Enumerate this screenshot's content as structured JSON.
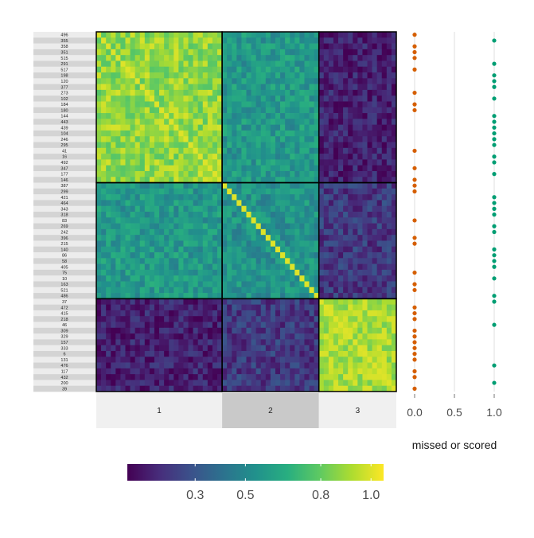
{
  "chart_data": {
    "type": "heatmap",
    "title": "",
    "row_labels": [
      "496",
      "355",
      "358",
      "351",
      "515",
      "291",
      "517",
      "198",
      "120",
      "377",
      "273",
      "102",
      "184",
      "180",
      "144",
      "443",
      "439",
      "104",
      "246",
      "295",
      "41",
      "16",
      "492",
      "347",
      "177",
      "146",
      "387",
      "299",
      "421",
      "464",
      "343",
      "318",
      "83",
      "269",
      "242",
      "396",
      "215",
      "140",
      "86",
      "58",
      "405",
      "75",
      "10",
      "163",
      "521",
      "486",
      "37",
      "472",
      "415",
      "218",
      "46",
      "309",
      "329",
      "157",
      "333",
      "6",
      "131",
      "476",
      "117",
      "432",
      "200",
      "39"
    ],
    "cluster_sizes": [
      26,
      20,
      16
    ],
    "cluster_labels": [
      "1",
      "2",
      "3"
    ],
    "within_values": [
      0.88,
      0.55,
      0.93
    ],
    "between_values": {
      "1-2": 0.57,
      "1-3": 0.12,
      "2-3": 0.2
    },
    "colorbar": {
      "ticks": [
        0.3,
        0.5,
        0.8,
        1.0
      ],
      "tick_labels": [
        "0.3",
        "0.5",
        "0.8",
        "1.0"
      ],
      "range": [
        0.03,
        1.05
      ],
      "colormap": "viridis"
    },
    "side_panel": {
      "xlabel": "missed or scored",
      "ticks": [
        0.0,
        0.5,
        1.0
      ],
      "tick_labels": [
        "0.0",
        "0.5",
        "1.0"
      ],
      "orange_color": "#D55E00",
      "green_color": "#009E73",
      "outcomes": [
        0,
        1,
        0,
        0,
        0,
        1,
        0,
        1,
        1,
        1,
        0,
        1,
        0,
        0,
        1,
        1,
        1,
        1,
        1,
        1,
        0,
        1,
        1,
        0,
        1,
        0,
        0,
        0,
        1,
        1,
        1,
        1,
        0,
        1,
        1,
        0,
        0,
        1,
        1,
        1,
        1,
        0,
        1,
        0,
        0,
        1,
        1,
        0,
        0,
        0,
        1,
        0,
        0,
        0,
        0,
        0,
        0,
        1,
        0,
        0,
        1,
        0
      ]
    }
  }
}
